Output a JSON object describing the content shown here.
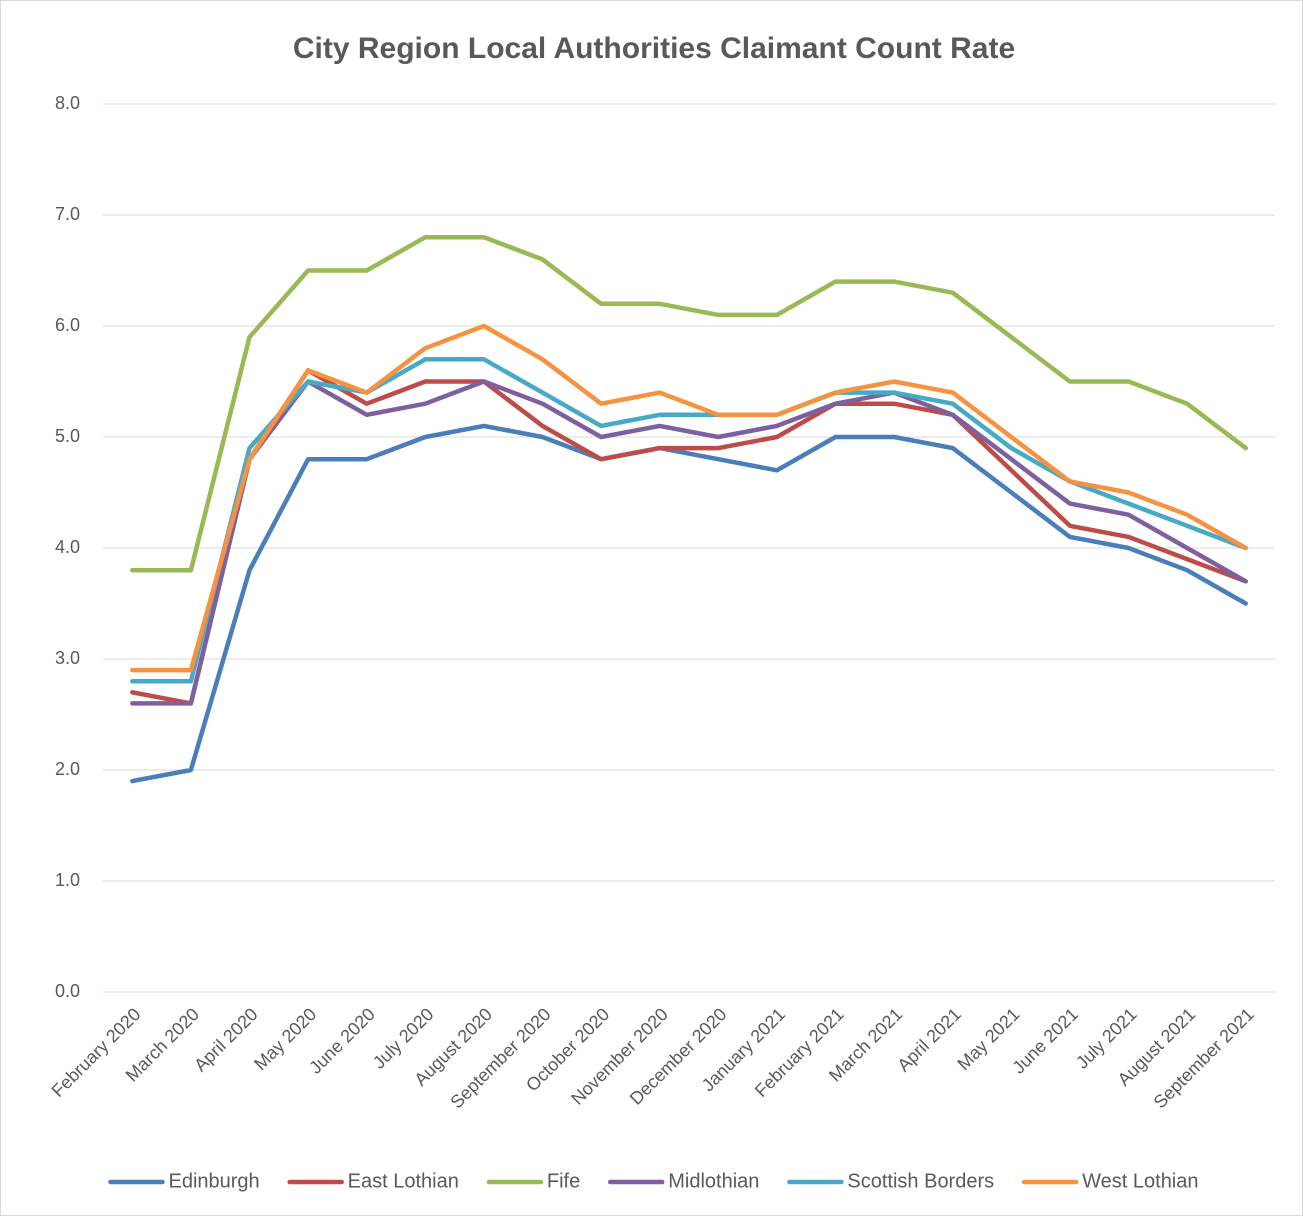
{
  "chart_data": {
    "type": "line",
    "title": "City Region Local Authorities Claimant Count Rate",
    "categories": [
      "February 2020",
      "March 2020",
      "April 2020",
      "May 2020",
      "June 2020",
      "July 2020",
      "August 2020",
      "September 2020",
      "October 2020",
      "November 2020",
      "December 2020",
      "January 2021",
      "February 2021",
      "March 2021",
      "April 2021",
      "May 2021",
      "June 2021",
      "July 2021",
      "August 2021",
      "September 2021"
    ],
    "series": [
      {
        "name": "Edinburgh",
        "color": "#4a7ebb",
        "values": [
          1.9,
          2.0,
          3.8,
          4.8,
          4.8,
          5.0,
          5.1,
          5.0,
          4.8,
          4.9,
          4.8,
          4.7,
          5.0,
          5.0,
          4.9,
          4.5,
          4.1,
          4.0,
          3.8,
          3.5
        ]
      },
      {
        "name": "East Lothian",
        "color": "#be4b48",
        "values": [
          2.7,
          2.6,
          4.8,
          5.6,
          5.3,
          5.5,
          5.5,
          5.1,
          4.8,
          4.9,
          4.9,
          5.0,
          5.3,
          5.3,
          5.2,
          4.7,
          4.2,
          4.1,
          3.9,
          3.7
        ]
      },
      {
        "name": "Fife",
        "color": "#98b954",
        "values": [
          3.8,
          3.8,
          5.9,
          6.5,
          6.5,
          6.8,
          6.8,
          6.6,
          6.2,
          6.2,
          6.1,
          6.1,
          6.4,
          6.4,
          6.3,
          5.9,
          5.5,
          5.5,
          5.3,
          4.9
        ]
      },
      {
        "name": "Midlothian",
        "color": "#7d60a0",
        "values": [
          2.6,
          2.6,
          4.8,
          5.5,
          5.2,
          5.3,
          5.5,
          5.3,
          5.0,
          5.1,
          5.0,
          5.1,
          5.3,
          5.4,
          5.2,
          4.8,
          4.4,
          4.3,
          4.0,
          3.7
        ]
      },
      {
        "name": "Scottish Borders",
        "color": "#46aac5",
        "values": [
          2.8,
          2.8,
          4.9,
          5.5,
          5.4,
          5.7,
          5.7,
          5.4,
          5.1,
          5.2,
          5.2,
          5.2,
          5.4,
          5.4,
          5.3,
          4.9,
          4.6,
          4.4,
          4.2,
          4.0
        ]
      },
      {
        "name": "West Lothian",
        "color": "#f69240",
        "values": [
          2.9,
          2.9,
          4.8,
          5.6,
          5.4,
          5.8,
          6.0,
          5.7,
          5.3,
          5.4,
          5.2,
          5.2,
          5.4,
          5.5,
          5.4,
          5.0,
          4.6,
          4.5,
          4.3,
          4.0
        ]
      }
    ],
    "ylim": [
      0,
      8
    ],
    "yticks": [
      {
        "value": 0,
        "label": "0.0"
      },
      {
        "value": 1,
        "label": "1.0"
      },
      {
        "value": 2,
        "label": "2.0"
      },
      {
        "value": 3,
        "label": "3.0"
      },
      {
        "value": 4,
        "label": "4.0"
      },
      {
        "value": 5,
        "label": "5.0"
      },
      {
        "value": 6,
        "label": "6.0"
      },
      {
        "value": 7,
        "label": "7.0"
      },
      {
        "value": 8,
        "label": "8.0"
      }
    ],
    "grid": true,
    "legend": "bottom"
  }
}
